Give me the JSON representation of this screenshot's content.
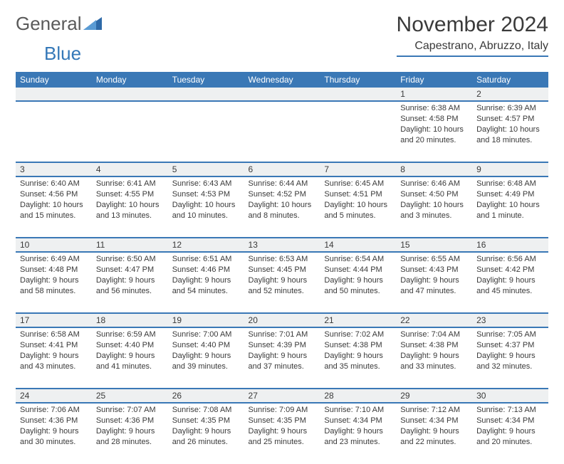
{
  "logo": {
    "word1": "General",
    "word2": "Blue"
  },
  "title": "November 2024",
  "location": "Capestrano, Abruzzo, Italy",
  "header_color": "#3a78b6",
  "day_bg": "#eef0f1",
  "text_color": "#3a3a3a",
  "days": [
    "Sunday",
    "Monday",
    "Tuesday",
    "Wednesday",
    "Thursday",
    "Friday",
    "Saturday"
  ],
  "labels": {
    "sunrise": "Sunrise:",
    "sunset": "Sunset:",
    "daylight": "Daylight:"
  },
  "cells": [
    {
      "day": "",
      "sunrise": "",
      "sunset": "",
      "daylight": ""
    },
    {
      "day": "",
      "sunrise": "",
      "sunset": "",
      "daylight": ""
    },
    {
      "day": "",
      "sunrise": "",
      "sunset": "",
      "daylight": ""
    },
    {
      "day": "",
      "sunrise": "",
      "sunset": "",
      "daylight": ""
    },
    {
      "day": "",
      "sunrise": "",
      "sunset": "",
      "daylight": ""
    },
    {
      "day": "1",
      "sunrise": "6:38 AM",
      "sunset": "4:58 PM",
      "daylight": "10 hours and 20 minutes."
    },
    {
      "day": "2",
      "sunrise": "6:39 AM",
      "sunset": "4:57 PM",
      "daylight": "10 hours and 18 minutes."
    },
    {
      "day": "3",
      "sunrise": "6:40 AM",
      "sunset": "4:56 PM",
      "daylight": "10 hours and 15 minutes."
    },
    {
      "day": "4",
      "sunrise": "6:41 AM",
      "sunset": "4:55 PM",
      "daylight": "10 hours and 13 minutes."
    },
    {
      "day": "5",
      "sunrise": "6:43 AM",
      "sunset": "4:53 PM",
      "daylight": "10 hours and 10 minutes."
    },
    {
      "day": "6",
      "sunrise": "6:44 AM",
      "sunset": "4:52 PM",
      "daylight": "10 hours and 8 minutes."
    },
    {
      "day": "7",
      "sunrise": "6:45 AM",
      "sunset": "4:51 PM",
      "daylight": "10 hours and 5 minutes."
    },
    {
      "day": "8",
      "sunrise": "6:46 AM",
      "sunset": "4:50 PM",
      "daylight": "10 hours and 3 minutes."
    },
    {
      "day": "9",
      "sunrise": "6:48 AM",
      "sunset": "4:49 PM",
      "daylight": "10 hours and 1 minute."
    },
    {
      "day": "10",
      "sunrise": "6:49 AM",
      "sunset": "4:48 PM",
      "daylight": "9 hours and 58 minutes."
    },
    {
      "day": "11",
      "sunrise": "6:50 AM",
      "sunset": "4:47 PM",
      "daylight": "9 hours and 56 minutes."
    },
    {
      "day": "12",
      "sunrise": "6:51 AM",
      "sunset": "4:46 PM",
      "daylight": "9 hours and 54 minutes."
    },
    {
      "day": "13",
      "sunrise": "6:53 AM",
      "sunset": "4:45 PM",
      "daylight": "9 hours and 52 minutes."
    },
    {
      "day": "14",
      "sunrise": "6:54 AM",
      "sunset": "4:44 PM",
      "daylight": "9 hours and 50 minutes."
    },
    {
      "day": "15",
      "sunrise": "6:55 AM",
      "sunset": "4:43 PM",
      "daylight": "9 hours and 47 minutes."
    },
    {
      "day": "16",
      "sunrise": "6:56 AM",
      "sunset": "4:42 PM",
      "daylight": "9 hours and 45 minutes."
    },
    {
      "day": "17",
      "sunrise": "6:58 AM",
      "sunset": "4:41 PM",
      "daylight": "9 hours and 43 minutes."
    },
    {
      "day": "18",
      "sunrise": "6:59 AM",
      "sunset": "4:40 PM",
      "daylight": "9 hours and 41 minutes."
    },
    {
      "day": "19",
      "sunrise": "7:00 AM",
      "sunset": "4:40 PM",
      "daylight": "9 hours and 39 minutes."
    },
    {
      "day": "20",
      "sunrise": "7:01 AM",
      "sunset": "4:39 PM",
      "daylight": "9 hours and 37 minutes."
    },
    {
      "day": "21",
      "sunrise": "7:02 AM",
      "sunset": "4:38 PM",
      "daylight": "9 hours and 35 minutes."
    },
    {
      "day": "22",
      "sunrise": "7:04 AM",
      "sunset": "4:38 PM",
      "daylight": "9 hours and 33 minutes."
    },
    {
      "day": "23",
      "sunrise": "7:05 AM",
      "sunset": "4:37 PM",
      "daylight": "9 hours and 32 minutes."
    },
    {
      "day": "24",
      "sunrise": "7:06 AM",
      "sunset": "4:36 PM",
      "daylight": "9 hours and 30 minutes."
    },
    {
      "day": "25",
      "sunrise": "7:07 AM",
      "sunset": "4:36 PM",
      "daylight": "9 hours and 28 minutes."
    },
    {
      "day": "26",
      "sunrise": "7:08 AM",
      "sunset": "4:35 PM",
      "daylight": "9 hours and 26 minutes."
    },
    {
      "day": "27",
      "sunrise": "7:09 AM",
      "sunset": "4:35 PM",
      "daylight": "9 hours and 25 minutes."
    },
    {
      "day": "28",
      "sunrise": "7:10 AM",
      "sunset": "4:34 PM",
      "daylight": "9 hours and 23 minutes."
    },
    {
      "day": "29",
      "sunrise": "7:12 AM",
      "sunset": "4:34 PM",
      "daylight": "9 hours and 22 minutes."
    },
    {
      "day": "30",
      "sunrise": "7:13 AM",
      "sunset": "4:34 PM",
      "daylight": "9 hours and 20 minutes."
    }
  ]
}
